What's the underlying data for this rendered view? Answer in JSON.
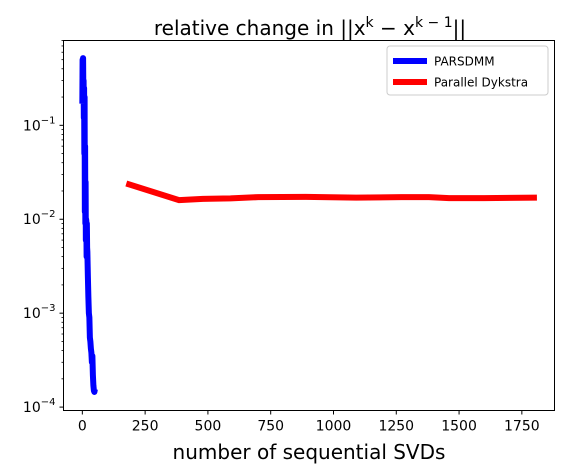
{
  "chart_data": {
    "type": "line",
    "title_prefix": "relative change in ||x",
    "title_sup1": "k",
    "title_mid": " − x",
    "title_sup2": "k − 1",
    "title_suffix": "||",
    "xlabel": "number of sequential SVDs",
    "ylabel": "",
    "xlim": [
      -75,
      1880
    ],
    "ylim": [
      9.2e-05,
      0.8
    ],
    "yscale": "log",
    "grid": false,
    "legend_position": "top-right",
    "x_ticks": [
      0,
      250,
      500,
      750,
      1000,
      1250,
      1500,
      1750
    ],
    "x_tick_labels": [
      "0",
      "250",
      "500",
      "750",
      "1000",
      "1250",
      "1500",
      "1750"
    ],
    "y_ticks": [
      0.0001,
      0.001,
      0.01,
      0.1
    ],
    "y_tick_labels": [
      [
        "10",
        "−4"
      ],
      [
        "10",
        "−3"
      ],
      [
        "10",
        "−2"
      ],
      [
        "10",
        "−1"
      ]
    ],
    "series": [
      {
        "name": "PARSDMM",
        "color": "#0000ff",
        "x": [
          0,
          1,
          2,
          3,
          4,
          5,
          6,
          7,
          8,
          9,
          10,
          11,
          12,
          13,
          14,
          15,
          16,
          17,
          18,
          19,
          20,
          22,
          24,
          26,
          28,
          30,
          32,
          34,
          36,
          38,
          40,
          42,
          44,
          46,
          48,
          50
        ],
        "y": [
          0.17,
          0.5,
          0.2,
          0.52,
          0.22,
          0.3,
          0.12,
          0.25,
          0.05,
          0.2,
          0.012,
          0.06,
          0.009,
          0.025,
          0.006,
          0.01,
          0.0095,
          0.004,
          0.009,
          0.005,
          0.0045,
          0.0025,
          0.0015,
          0.001,
          0.0009,
          0.00055,
          0.0005,
          0.00042,
          0.00038,
          0.0003,
          0.00035,
          0.00022,
          0.00017,
          0.00015,
          0.000145,
          0.000155
        ]
      },
      {
        "name": "Parallel Dykstra",
        "color": "#ff0000",
        "x": [
          175,
          385,
          480,
          590,
          700,
          890,
          1090,
          1270,
          1380,
          1460,
          1600,
          1810
        ],
        "y": [
          0.024,
          0.016,
          0.0165,
          0.0167,
          0.0172,
          0.0173,
          0.017,
          0.0172,
          0.0172,
          0.0168,
          0.0168,
          0.017
        ]
      }
    ]
  }
}
